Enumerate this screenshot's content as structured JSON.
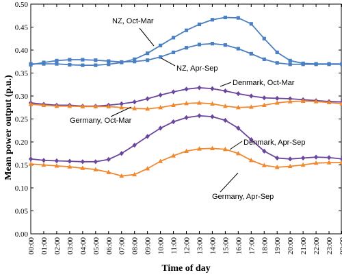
{
  "chart_data": {
    "type": "line",
    "title": "",
    "xlabel": "Time of day",
    "ylabel": "Mean power output (p.u.)",
    "ylim": [
      0.0,
      0.5
    ],
    "yticks": [
      "0.00",
      "0.05",
      "0.10",
      "0.15",
      "0.20",
      "0.25",
      "0.30",
      "0.35",
      "0.40",
      "0.45",
      "0.50"
    ],
    "categories": [
      "00:00",
      "01:00",
      "02:00",
      "03:00",
      "04:00",
      "05:00",
      "06:00",
      "07:00",
      "08:00",
      "09:00",
      "10:00",
      "11:00",
      "12:00",
      "13:00",
      "14:00",
      "15:00",
      "16:00",
      "17:00",
      "18:00",
      "19:00",
      "20:00",
      "21:00",
      "22:00",
      "23:00",
      "00:00"
    ],
    "grid": false,
    "legend": "none",
    "series": [
      {
        "name": "NZ, Oct-Mar",
        "color": "#4a7fc1",
        "marker": "square",
        "values": [
          0.37,
          0.37,
          0.37,
          0.368,
          0.367,
          0.367,
          0.369,
          0.373,
          0.38,
          0.393,
          0.41,
          0.427,
          0.443,
          0.456,
          0.466,
          0.471,
          0.47,
          0.457,
          0.425,
          0.395,
          0.377,
          0.371,
          0.37,
          0.37,
          0.37
        ]
      },
      {
        "name": "NZ, Apr-Sep",
        "color": "#4a7fc1",
        "marker": "square",
        "values": [
          0.368,
          0.373,
          0.377,
          0.379,
          0.379,
          0.378,
          0.376,
          0.374,
          0.375,
          0.378,
          0.385,
          0.395,
          0.405,
          0.412,
          0.414,
          0.411,
          0.403,
          0.392,
          0.38,
          0.372,
          0.369,
          0.369,
          0.369,
          0.369,
          0.369
        ]
      },
      {
        "name": "Denmark, Oct-Mar",
        "color": "#6a479c",
        "marker": "diamond",
        "values": [
          0.285,
          0.282,
          0.28,
          0.28,
          0.278,
          0.278,
          0.28,
          0.283,
          0.287,
          0.294,
          0.302,
          0.309,
          0.315,
          0.318,
          0.316,
          0.311,
          0.305,
          0.3,
          0.296,
          0.295,
          0.294,
          0.292,
          0.29,
          0.288,
          0.287
        ]
      },
      {
        "name": "Germany, Oct-Mar",
        "color": "#f0882d",
        "marker": "triangle",
        "values": [
          0.282,
          0.28,
          0.278,
          0.278,
          0.277,
          0.277,
          0.277,
          0.275,
          0.273,
          0.272,
          0.275,
          0.28,
          0.284,
          0.285,
          0.283,
          0.278,
          0.275,
          0.276,
          0.28,
          0.285,
          0.288,
          0.289,
          0.288,
          0.286,
          0.283
        ]
      },
      {
        "name": "Denmark, Apr-Sep",
        "color": "#6a479c",
        "marker": "diamond",
        "values": [
          0.163,
          0.16,
          0.159,
          0.158,
          0.157,
          0.157,
          0.162,
          0.175,
          0.193,
          0.212,
          0.23,
          0.244,
          0.253,
          0.257,
          0.255,
          0.247,
          0.23,
          0.205,
          0.18,
          0.165,
          0.163,
          0.165,
          0.167,
          0.166,
          0.163
        ]
      },
      {
        "name": "Germany, Apr-Sep",
        "color": "#f0882d",
        "marker": "triangle",
        "values": [
          0.152,
          0.15,
          0.148,
          0.146,
          0.143,
          0.14,
          0.134,
          0.126,
          0.129,
          0.142,
          0.158,
          0.17,
          0.18,
          0.185,
          0.186,
          0.184,
          0.175,
          0.16,
          0.149,
          0.145,
          0.147,
          0.15,
          0.154,
          0.155,
          0.155
        ]
      }
    ],
    "annotations": [
      {
        "text": "NZ, Oct-Mar",
        "series": "NZ, Oct-Mar"
      },
      {
        "text": "NZ, Apr-Sep",
        "series": "NZ, Apr-Sep"
      },
      {
        "text": "Denmark, Oct-Mar",
        "series": "Denmark, Oct-Mar"
      },
      {
        "text": "Germany, Oct-Mar",
        "series": "Germany, Oct-Mar"
      },
      {
        "text": "Denmark, Apr-Sep",
        "series": "Denmark, Apr-Sep"
      },
      {
        "text": "Germany, Apr-Sep",
        "series": "Germany, Apr-Sep"
      }
    ]
  }
}
